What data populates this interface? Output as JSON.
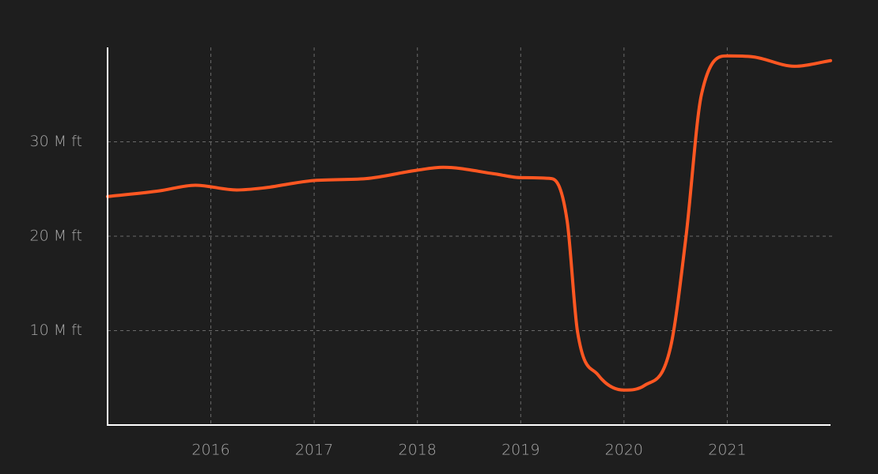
{
  "chart_data": {
    "type": "line",
    "x": [
      2015.0,
      2015.5,
      2015.85,
      2016.25,
      2016.5,
      2017.0,
      2017.5,
      2018.0,
      2018.25,
      2018.75,
      2019.0,
      2019.3,
      2019.45,
      2019.55,
      2019.75,
      2020.0,
      2020.2,
      2020.45,
      2020.6,
      2020.75,
      2021.0,
      2021.25,
      2021.65,
      2022.0
    ],
    "series": [
      {
        "color": "#ff5722",
        "values": [
          24.2,
          24.8,
          25.4,
          24.9,
          25.1,
          25.9,
          26.1,
          27.0,
          27.3,
          26.6,
          26.2,
          26.1,
          21.6,
          9.9,
          5.3,
          3.7,
          4.2,
          8.2,
          19.9,
          35.0,
          39.1,
          39.0,
          38.0,
          38.6
        ]
      }
    ],
    "xlim": [
      2015,
      2022
    ],
    "xticks": [
      2016,
      2017,
      2018,
      2019,
      2020,
      2021
    ],
    "ylim": [
      0,
      40
    ],
    "yticks": [
      {
        "value": 10,
        "label": "10 M ft"
      },
      {
        "value": 20,
        "label": "20 M ft"
      },
      {
        "value": 30,
        "label": "30 M ft"
      }
    ],
    "grid": true
  }
}
